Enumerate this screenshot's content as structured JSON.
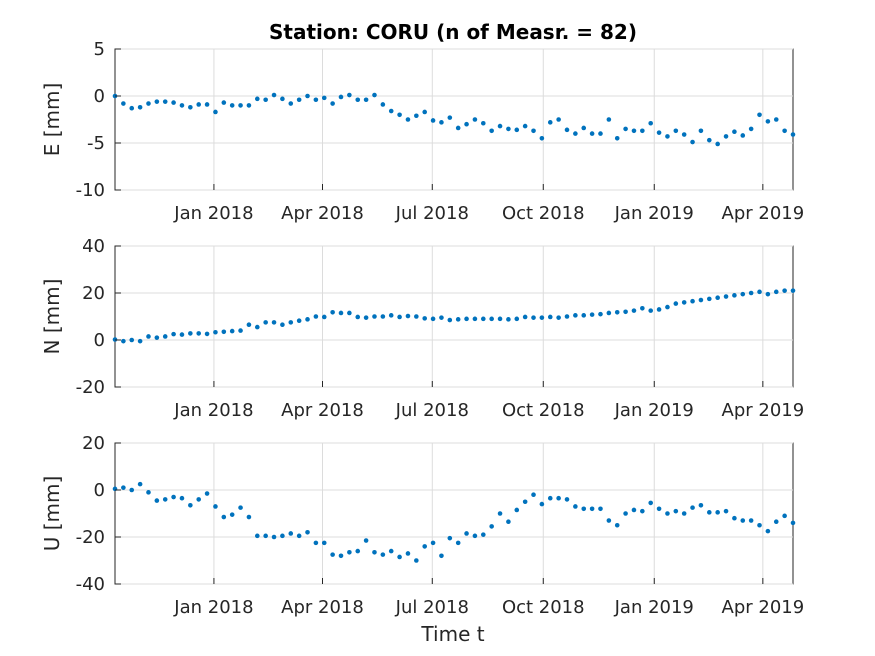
{
  "chart_data": {
    "type": "scatter",
    "title": "Station: CORU (n of Measr. = 82)",
    "xlabel": "Time t",
    "x_tick_labels": [
      "Jan 2018",
      "Apr 2018",
      "Jul 2018",
      "Oct 2018",
      "Jan 2019",
      "Apr 2019"
    ],
    "x_tick_days": [
      82,
      172,
      263,
      355,
      447,
      537
    ],
    "x_start_day": 0,
    "x_end_day": 562,
    "marker_color": "#0072bd",
    "panels": [
      {
        "name": "E",
        "ylabel": "E [mm]",
        "ylim": [
          -10,
          5
        ],
        "yticks": [
          -10,
          -5,
          0,
          5
        ],
        "ytick_labels": [
          "-10",
          "-5",
          "0",
          "5"
        ],
        "values": [
          0.0,
          -0.8,
          -1.3,
          -1.2,
          -0.8,
          -0.6,
          -0.6,
          -0.7,
          -1.0,
          -1.2,
          -0.9,
          -0.9,
          -1.7,
          -0.7,
          -1.0,
          -1.0,
          -1.0,
          -0.3,
          -0.4,
          0.1,
          -0.3,
          -0.8,
          -0.4,
          0.0,
          -0.4,
          -0.2,
          -0.8,
          -0.1,
          0.1,
          -0.4,
          -0.4,
          0.1,
          -0.9,
          -1.6,
          -2.0,
          -2.5,
          -2.1,
          -1.7,
          -2.6,
          -2.8,
          -2.3,
          -3.4,
          -3.0,
          -2.5,
          -2.9,
          -3.7,
          -3.2,
          -3.5,
          -3.6,
          -3.2,
          -3.7,
          -4.5,
          -2.8,
          -2.5,
          -3.6,
          -4.0,
          -3.4,
          -4.0,
          -4.0,
          -2.5,
          -4.5,
          -3.5,
          -3.7,
          -3.7,
          -2.9,
          -3.9,
          -4.3,
          -3.7,
          -4.1,
          -4.9,
          -3.7,
          -4.7,
          -5.1,
          -4.3,
          -3.8,
          -4.2,
          -3.5,
          -2.0,
          -2.7,
          -2.5,
          -3.7,
          -4.1
        ]
      },
      {
        "name": "N",
        "ylabel": "N [mm]",
        "ylim": [
          -20,
          40
        ],
        "yticks": [
          -20,
          0,
          20,
          40
        ],
        "ytick_labels": [
          "-20",
          "0",
          "20",
          "40"
        ],
        "values": [
          0.2,
          -0.5,
          0.0,
          -0.5,
          1.5,
          1.0,
          1.5,
          2.5,
          2.3,
          2.8,
          2.8,
          2.6,
          3.3,
          3.5,
          3.8,
          4.0,
          6.5,
          5.5,
          7.5,
          7.5,
          6.5,
          7.5,
          8.2,
          8.8,
          10.0,
          9.8,
          11.8,
          11.5,
          11.5,
          9.8,
          9.5,
          10.0,
          10.0,
          10.5,
          9.8,
          10.2,
          10.0,
          9.2,
          9.0,
          9.5,
          8.5,
          8.8,
          9.0,
          9.0,
          9.0,
          9.0,
          9.0,
          8.8,
          9.0,
          9.8,
          9.5,
          9.5,
          9.8,
          9.5,
          10.0,
          10.5,
          10.5,
          10.8,
          11.0,
          11.5,
          11.8,
          12.0,
          12.5,
          13.5,
          12.5,
          13.0,
          14.0,
          15.5,
          16.0,
          16.5,
          17.0,
          17.5,
          18.0,
          18.5,
          19.0,
          19.5,
          20.0,
          20.5,
          19.5,
          20.5,
          21.0,
          21.0
        ]
      },
      {
        "name": "U",
        "ylabel": "U [mm]",
        "ylim": [
          -40,
          20
        ],
        "yticks": [
          -40,
          -20,
          0,
          20
        ],
        "ytick_labels": [
          "-40",
          "-20",
          "0",
          "20"
        ],
        "values": [
          0.5,
          1.0,
          0.0,
          2.5,
          -1.0,
          -4.5,
          -4.0,
          -3.0,
          -3.5,
          -6.5,
          -4.0,
          -1.5,
          -7.0,
          -11.5,
          -10.5,
          -7.5,
          -11.5,
          -19.5,
          -19.5,
          -20.0,
          -19.5,
          -18.5,
          -19.5,
          -18.0,
          -22.5,
          -22.5,
          -27.5,
          -28.0,
          -26.5,
          -26.0,
          -21.5,
          -26.5,
          -27.5,
          -26.0,
          -28.5,
          -27.0,
          -30.0,
          -24.0,
          -22.5,
          -28.0,
          -20.5,
          -22.5,
          -18.5,
          -19.5,
          -19.0,
          -15.5,
          -10.0,
          -13.5,
          -8.5,
          -5.0,
          -2.0,
          -6.0,
          -3.5,
          -3.5,
          -4.0,
          -7.0,
          -8.0,
          -8.0,
          -8.0,
          -13.0,
          -15.0,
          -10.0,
          -8.5,
          -9.0,
          -5.5,
          -8.0,
          -10.0,
          -9.0,
          -10.0,
          -7.5,
          -6.5,
          -9.5,
          -9.5,
          -9.0,
          -12.0,
          -13.0,
          -13.0,
          -15.0,
          -17.5,
          -13.5,
          -11.0,
          -14.0
        ]
      }
    ]
  }
}
